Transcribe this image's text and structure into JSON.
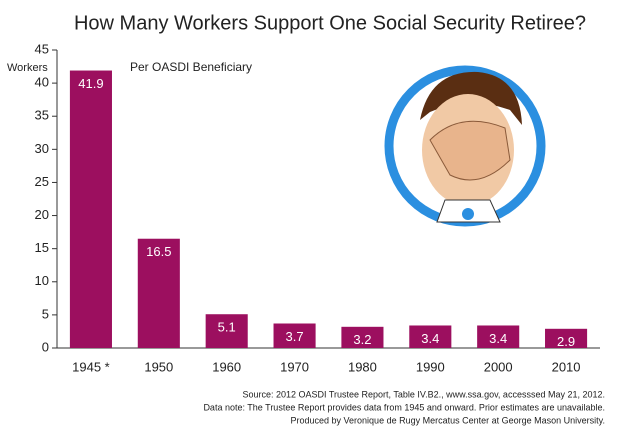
{
  "chart_data": {
    "type": "bar",
    "title": "How Many Workers Support One Social Security Retiree?",
    "y_label": "Workers",
    "annotation": "Per OASDI Beneficiary",
    "categories": [
      "1945 *",
      "1950",
      "1960",
      "1970",
      "1980",
      "1990",
      "2000",
      "2010"
    ],
    "values": [
      41.9,
      16.5,
      5.1,
      3.7,
      3.2,
      3.4,
      3.4,
      2.9
    ],
    "color": "#9c0f5f",
    "ylim": [
      0,
      45
    ],
    "yticks": [
      0,
      5,
      10,
      15,
      20,
      25,
      30,
      35,
      40,
      45
    ],
    "grid": false,
    "source": [
      "Source: 2012 OASDI Trustee Report, Table IV.B2., www.ssa.gov, accesssed May 21, 2012.",
      "Data note: The Trustee Report provides data from 1945 and onward. Prior estimates are unavailable.",
      "Produced by Veronique de Rugy Mercatus Center at George Mason University."
    ]
  }
}
